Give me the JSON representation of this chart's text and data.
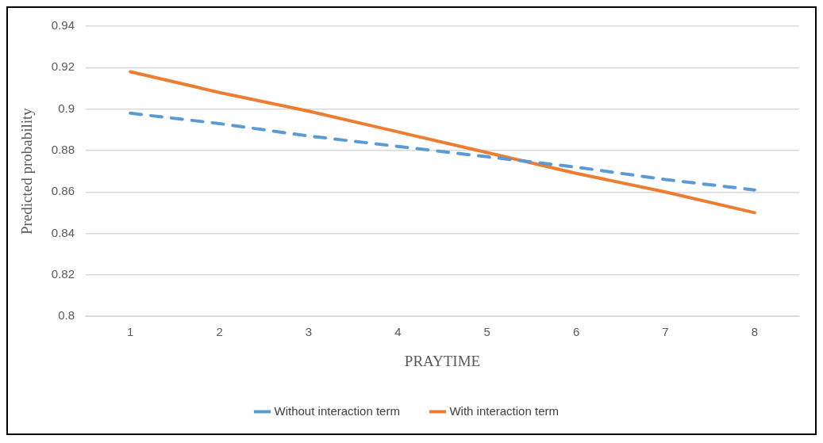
{
  "chart_data": {
    "type": "line",
    "xlabel": "PRAYTIME",
    "ylabel": "Predicted probability",
    "categories": [
      "1",
      "2",
      "3",
      "4",
      "5",
      "6",
      "7",
      "8"
    ],
    "series": [
      {
        "name": "Without interaction term",
        "color": "#5b9bd5",
        "line_style": "dashed",
        "values": [
          0.898,
          0.893,
          0.887,
          0.882,
          0.877,
          0.872,
          0.866,
          0.861
        ]
      },
      {
        "name": "With interaction term",
        "color": "#ed7d31",
        "line_style": "solid",
        "values": [
          0.918,
          0.908,
          0.899,
          0.889,
          0.879,
          0.869,
          0.86,
          0.85
        ]
      }
    ],
    "ylim": [
      0.8,
      0.94
    ],
    "yticks": [
      0.8,
      0.82,
      0.84,
      0.86,
      0.88,
      0.9,
      0.92,
      0.94
    ],
    "grid": "y",
    "legend": "bottom",
    "marker": "none"
  }
}
